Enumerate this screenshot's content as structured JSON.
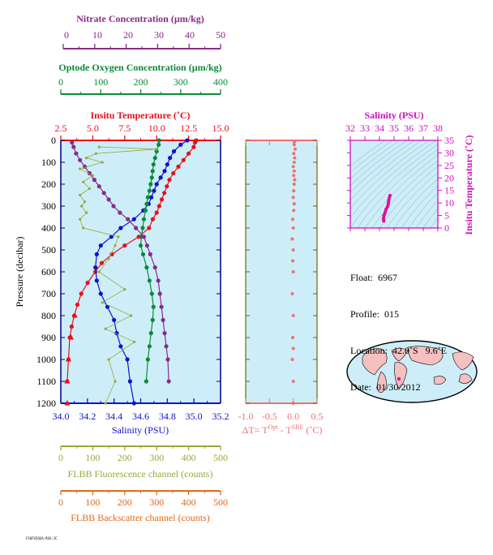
{
  "colors": {
    "nitrate": "#8b2a8b",
    "oxygen": "#0a8a3a",
    "temperature": "#e8101a",
    "salinity": "#1010d0",
    "fluorescence": "#9aa83a",
    "backscatter": "#e06a1a",
    "plot_bg": "#cdeef8",
    "delta": "#f07070",
    "ts_axis": "#d010c0",
    "navy": "#000080"
  },
  "axes": {
    "nitrate": {
      "label": "Nitrate Concentration (µm/kg)",
      "ticks": [
        "0",
        "10",
        "20",
        "30",
        "40",
        "50"
      ]
    },
    "oxygen": {
      "label": "Optode Oxygen Concentration (µm/kg)",
      "ticks": [
        "0",
        "100",
        "200",
        "300",
        "400"
      ]
    },
    "temperature": {
      "label": "Insitu Temperature (˚C)",
      "ticks": [
        "2.5",
        "5.0",
        "7.5",
        "10.0",
        "12.5",
        "15.0"
      ]
    },
    "salinity": {
      "label": "Salinity (PSU)",
      "ticks": [
        "34.0",
        "34.2",
        "34.4",
        "34.6",
        "34.8",
        "35.0",
        "35.2"
      ]
    },
    "pressure": {
      "label": "Pressure (decibar)",
      "ticks": [
        "0",
        "100",
        "200",
        "300",
        "400",
        "500",
        "600",
        "700",
        "800",
        "900",
        "1000",
        "1100",
        "1200"
      ]
    },
    "fluorescence": {
      "label": "FLBB Fluorescence channel (counts)",
      "ticks": [
        "0",
        "100",
        "200",
        "300",
        "400",
        "500"
      ]
    },
    "backscatter": {
      "label": "FLBB Backscatter channel (counts)",
      "ticks": [
        "0",
        "100",
        "200",
        "300",
        "400",
        "500"
      ]
    },
    "delta": {
      "label_parts": [
        "ΔT= T",
        "Opt",
        " - T",
        "SBE",
        " (˚C)"
      ],
      "ticks": [
        "-1.0",
        "-0.5",
        "0.0",
        "0.5"
      ]
    },
    "ts_salinity": {
      "label": "Salinity (PSU)",
      "ticks": [
        "32",
        "33",
        "34",
        "35",
        "36",
        "37",
        "38"
      ]
    },
    "ts_temperature": {
      "label": "Insitu Temperature (˚C)",
      "ticks": [
        "0",
        "5",
        "10",
        "15",
        "20",
        "25",
        "30",
        "35"
      ]
    }
  },
  "info": {
    "float": "Float:  6967",
    "profile": "Profile:  015",
    "location": "Location:  42.0˚S   9.6˚E",
    "date": "Date:  01/30/2012"
  },
  "footer_text": "FSUFUIOSA:RSA:JC",
  "chart_data": [
    {
      "type": "line",
      "title": "",
      "ylabel": "Pressure (decibar)",
      "ylim": [
        1200,
        0
      ],
      "series": [
        {
          "name": "Insitu Temperature (˚C)",
          "color": "#e8101a",
          "xlim": [
            2.5,
            15.0
          ],
          "x": [
            13.1,
            13.0,
            12.9,
            12.5,
            12.1,
            11.7,
            11.3,
            11.0,
            10.8,
            10.6,
            10.4,
            10.2,
            10.0,
            9.7,
            9.4,
            8.6,
            7.5,
            6.5,
            5.7,
            5.2,
            4.6,
            4.1,
            3.8,
            3.55,
            3.35,
            3.2,
            3.1,
            3.0
          ],
          "y": [
            0,
            10,
            30,
            60,
            90,
            120,
            150,
            180,
            210,
            240,
            270,
            300,
            330,
            360,
            400,
            440,
            480,
            520,
            560,
            600,
            650,
            700,
            750,
            800,
            850,
            900,
            1000,
            1100
          ]
        },
        {
          "name": "Salinity (PSU)",
          "color": "#1010d0",
          "xlim": [
            34.0,
            35.2
          ],
          "x": [
            34.95,
            34.9,
            34.85,
            34.82,
            34.8,
            34.78,
            34.75,
            34.72,
            34.7,
            34.68,
            34.66,
            34.62,
            34.55,
            34.45,
            34.38,
            34.3,
            34.27,
            34.26,
            34.27,
            34.3,
            34.35,
            34.4,
            34.42,
            34.45,
            34.5,
            34.52,
            34.55
          ],
          "y": [
            0,
            20,
            50,
            80,
            110,
            140,
            170,
            200,
            230,
            260,
            290,
            320,
            360,
            400,
            440,
            480,
            520,
            580,
            640,
            700,
            760,
            820,
            880,
            940,
            1000,
            1100,
            1200
          ]
        },
        {
          "name": "Optode Oxygen Concentration (µm/kg)",
          "color": "#0a8a3a",
          "xlim": [
            0,
            400
          ],
          "x": [
            246,
            245,
            240,
            236,
            232,
            230,
            228,
            225,
            222,
            218,
            215,
            212,
            208,
            205,
            202,
            200,
            206,
            215,
            222,
            228,
            232,
            230,
            226,
            222,
            218,
            214
          ],
          "y": [
            0,
            20,
            50,
            80,
            110,
            140,
            170,
            200,
            230,
            260,
            290,
            320,
            360,
            400,
            440,
            480,
            520,
            580,
            640,
            700,
            760,
            820,
            880,
            940,
            1000,
            1100
          ]
        },
        {
          "name": "Nitrate Concentration (µm/kg)",
          "color": "#8b2a8b",
          "xlim": [
            0,
            50
          ],
          "x": [
            3.5,
            4.0,
            4.8,
            6.0,
            7.5,
            9.0,
            10.5,
            12.0,
            13.5,
            15.0,
            16.5,
            18.5,
            21.0,
            23.5,
            26.0,
            27.0,
            28.0,
            29.5,
            30.5,
            31.0,
            31.5,
            32.0,
            32.5,
            33.0,
            33.5,
            33.8
          ],
          "y": [
            10,
            30,
            60,
            90,
            120,
            150,
            180,
            210,
            240,
            270,
            300,
            330,
            360,
            400,
            440,
            480,
            520,
            580,
            640,
            700,
            760,
            820,
            880,
            940,
            1000,
            1100
          ]
        },
        {
          "name": "FLBB Fluorescence channel (counts)",
          "color": "#9aa83a",
          "xlim": [
            0,
            500
          ],
          "x": [
            120,
            300,
            110,
            80,
            130,
            60,
            100,
            70,
            90,
            60,
            75,
            65,
            80,
            60,
            70,
            180,
            170,
            150,
            120,
            200,
            130,
            220,
            140,
            230,
            150,
            170,
            140
          ],
          "y": [
            30,
            40,
            60,
            80,
            100,
            130,
            160,
            190,
            220,
            250,
            280,
            300,
            330,
            360,
            400,
            440,
            480,
            540,
            600,
            680,
            740,
            800,
            860,
            920,
            1000,
            1100,
            1200
          ]
        }
      ]
    },
    {
      "type": "scatter",
      "name": "ΔT= T Opt - T SBE (˚C)",
      "xlim": [
        -1.0,
        0.5
      ],
      "ylim": [
        1200,
        0
      ],
      "x": [
        0.03,
        0.02,
        0.04,
        0.01,
        0.03,
        0.02,
        0.0,
        0.02,
        0.01,
        0.03,
        0.02,
        0.01,
        0.0,
        0.02,
        0.01,
        -0.01,
        0.0,
        -0.02,
        0.0,
        -0.01,
        0.0,
        -0.02,
        0.0,
        -0.01,
        0.0,
        -0.02,
        0.0,
        0.0
      ],
      "y": [
        5,
        20,
        40,
        60,
        80,
        100,
        120,
        140,
        160,
        180,
        200,
        230,
        260,
        290,
        320,
        360,
        400,
        450,
        500,
        550,
        600,
        700,
        800,
        900,
        950,
        1000,
        1100,
        1200
      ]
    },
    {
      "type": "line",
      "name": "TS diagram",
      "xlabel": "Salinity (PSU)",
      "ylabel": "Insitu Temperature (˚C)",
      "xlim": [
        32,
        38
      ],
      "ylim": [
        0,
        35
      ],
      "x": [
        34.3,
        34.28,
        34.27,
        34.28,
        34.3,
        34.35,
        34.4,
        34.45,
        34.55,
        34.6,
        34.62,
        34.65,
        34.7,
        34.72
      ],
      "y": [
        2.8,
        3.0,
        3.5,
        4.0,
        5.0,
        5.5,
        6.5,
        7.5,
        8.5,
        9.5,
        10.5,
        11.5,
        12.5,
        13.0
      ]
    }
  ]
}
